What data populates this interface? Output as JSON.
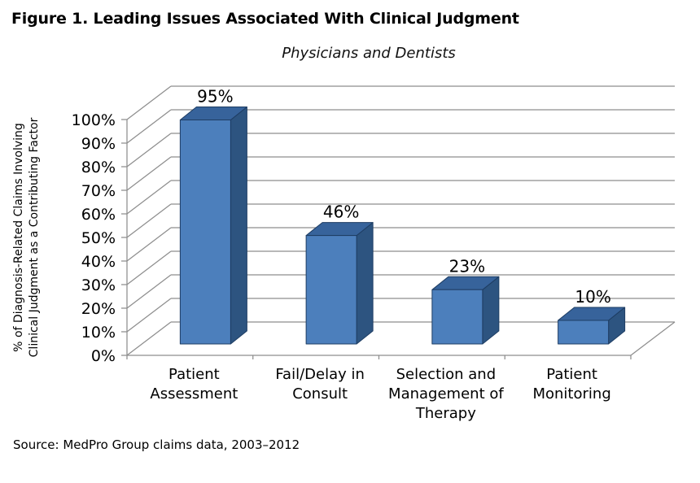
{
  "figure": {
    "title": "Figure 1. Leading Issues Associated With Clinical Judgment",
    "subtitle": "Physicians and Dentists",
    "source": "Source: MedPro Group claims data, 2003–2012"
  },
  "chart_data": {
    "type": "bar",
    "style": "3d-column",
    "title": "Figure 1. Leading Issues Associated With Clinical Judgment",
    "subtitle": "Physicians and Dentists",
    "categories": [
      "Patient Assessment",
      "Fail/Delay in Consult",
      "Selection and Management of Therapy",
      "Patient Monitoring"
    ],
    "category_label_lines": [
      [
        "Patient",
        "Assessment"
      ],
      [
        "Fail/Delay in",
        "Consult"
      ],
      [
        "Selection and",
        "Management of",
        "Therapy"
      ],
      [
        "Patient",
        "Monitoring"
      ]
    ],
    "values": [
      95,
      46,
      23,
      10
    ],
    "data_labels": [
      "95%",
      "46%",
      "23%",
      "10%"
    ],
    "xlabel": "",
    "ylabel": "% of Diagnosis-Related Claims Involving Clinical Judgment as a Contributing Factor",
    "ylabel_lines": [
      "% of Diagnosis-Related Claims Involving",
      "Clinical Judgment as a Contributing Factor"
    ],
    "ylim": [
      0,
      100
    ],
    "ytick_step": 10,
    "ytick_labels": [
      "0%",
      "10%",
      "20%",
      "30%",
      "40%",
      "50%",
      "60%",
      "70%",
      "80%",
      "90%",
      "100%"
    ],
    "grid": true,
    "legend": false,
    "source": "Source: MedPro Group claims data, 2003–2012",
    "colors": {
      "bar_front": "#4c7fbc",
      "bar_top": "#37639b",
      "bar_side": "#2d5480",
      "bar_edge": "#1e3d63",
      "gridline": "#8e8e8e",
      "text": "#000000",
      "background": "#ffffff"
    }
  }
}
